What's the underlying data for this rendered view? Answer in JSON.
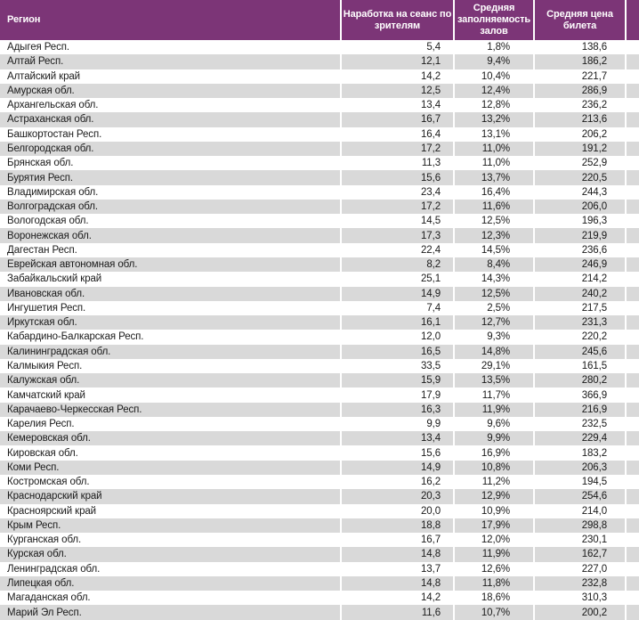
{
  "colors": {
    "header_bg": "#7c3577",
    "stripe": "#d9d9d9",
    "header_text": "#ffffff",
    "body_text": "#1a1a1a"
  },
  "chart_data": {
    "type": "table",
    "columns": [
      "Регион",
      "Наработка на сеанс по зрителям",
      "Средняя заполняемость залов",
      "Средняя цена билета"
    ],
    "rows": [
      [
        "Адыгея Респ.",
        "5,4",
        "1,8%",
        "138,6"
      ],
      [
        "Алтай Респ.",
        "12,1",
        "9,4%",
        "186,2"
      ],
      [
        "Алтайский край",
        "14,2",
        "10,4%",
        "221,7"
      ],
      [
        "Амурская обл.",
        "12,5",
        "12,4%",
        "286,9"
      ],
      [
        "Архангельская обл.",
        "13,4",
        "12,8%",
        "236,2"
      ],
      [
        "Астраханская обл.",
        "16,7",
        "13,2%",
        "213,6"
      ],
      [
        "Башкортостан Респ.",
        "16,4",
        "13,1%",
        "206,2"
      ],
      [
        "Белгородская обл.",
        "17,2",
        "11,0%",
        "191,2"
      ],
      [
        "Брянская обл.",
        "11,3",
        "11,0%",
        "252,9"
      ],
      [
        "Бурятия Респ.",
        "15,6",
        "13,7%",
        "220,5"
      ],
      [
        "Владимирская обл.",
        "23,4",
        "16,4%",
        "244,3"
      ],
      [
        "Волгоградская обл.",
        "17,2",
        "11,6%",
        "206,0"
      ],
      [
        "Вологодская обл.",
        "14,5",
        "12,5%",
        "196,3"
      ],
      [
        "Воронежская обл.",
        "17,3",
        "12,3%",
        "219,9"
      ],
      [
        "Дагестан Респ.",
        "22,4",
        "14,5%",
        "236,6"
      ],
      [
        "Еврейская автономная обл.",
        "8,2",
        "8,4%",
        "246,9"
      ],
      [
        "Забайкальский край",
        "25,1",
        "14,3%",
        "214,2"
      ],
      [
        "Ивановская обл.",
        "14,9",
        "12,5%",
        "240,2"
      ],
      [
        "Ингушетия Респ.",
        "7,4",
        "2,5%",
        "217,5"
      ],
      [
        "Иркутская обл.",
        "16,1",
        "12,7%",
        "231,3"
      ],
      [
        "Кабардино-Балкарская Респ.",
        "12,0",
        "9,3%",
        "220,2"
      ],
      [
        "Калининградская обл.",
        "16,5",
        "14,8%",
        "245,6"
      ],
      [
        "Калмыкия Респ.",
        "33,5",
        "29,1%",
        "161,5"
      ],
      [
        "Калужская обл.",
        "15,9",
        "13,5%",
        "280,2"
      ],
      [
        "Камчатский край",
        "17,9",
        "11,7%",
        "366,9"
      ],
      [
        "Карачаево-Черкесская Респ.",
        "16,3",
        "11,9%",
        "216,9"
      ],
      [
        "Карелия Респ.",
        "9,9",
        "9,6%",
        "232,5"
      ],
      [
        "Кемеровская обл.",
        "13,4",
        "9,9%",
        "229,4"
      ],
      [
        "Кировская обл.",
        "15,6",
        "16,9%",
        "183,2"
      ],
      [
        "Коми Респ.",
        "14,9",
        "10,8%",
        "206,3"
      ],
      [
        "Костромская обл.",
        "16,2",
        "11,2%",
        "194,5"
      ],
      [
        "Краснодарский край",
        "20,3",
        "12,9%",
        "254,6"
      ],
      [
        "Красноярский край",
        "20,0",
        "10,9%",
        "214,0"
      ],
      [
        "Крым Респ.",
        "18,8",
        "17,9%",
        "298,8"
      ],
      [
        "Курганская обл.",
        "16,7",
        "12,0%",
        "230,1"
      ],
      [
        "Курская обл.",
        "14,8",
        "11,9%",
        "162,7"
      ],
      [
        "Ленинградская обл.",
        "13,7",
        "12,6%",
        "227,0"
      ],
      [
        "Липецкая обл.",
        "14,8",
        "11,8%",
        "232,8"
      ],
      [
        "Магаданская обл.",
        "14,2",
        "18,6%",
        "310,3"
      ],
      [
        "Марий Эл Респ.",
        "11,6",
        "10,7%",
        "200,2"
      ]
    ]
  }
}
